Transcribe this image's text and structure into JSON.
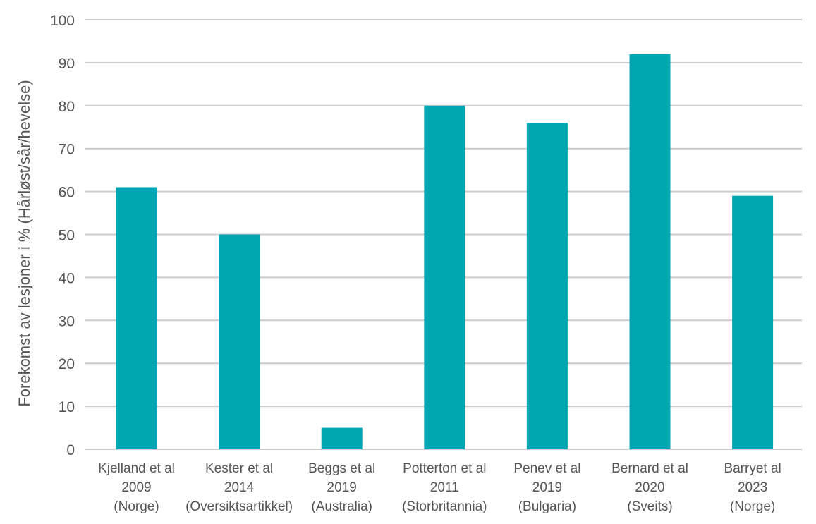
{
  "chart_data": {
    "type": "bar",
    "title": "",
    "xlabel": "",
    "ylabel": "Forekomst av lesjoner i % (Hårløst/sår/hevelse)",
    "ylim": [
      0,
      100
    ],
    "yticks": [
      0,
      10,
      20,
      30,
      40,
      50,
      60,
      70,
      80,
      90,
      100
    ],
    "grid": true,
    "bar_color": "#00a7b2",
    "categories": [
      [
        "Kjelland et al",
        "2009",
        "(Norge)"
      ],
      [
        "Kester et al",
        "2014",
        "(Oversiktsartikkel)"
      ],
      [
        "Beggs et al",
        "2019",
        "(Australia)"
      ],
      [
        "Potterton et al",
        "2011",
        "(Storbritannia)"
      ],
      [
        "Penev et al",
        "2019",
        "(Bulgaria)"
      ],
      [
        "Bernard et al",
        "2020",
        "(Sveits)"
      ],
      [
        "Barryet al",
        "2023",
        "(Norge)"
      ]
    ],
    "values": [
      61,
      50,
      5,
      80,
      76,
      92,
      59
    ]
  }
}
